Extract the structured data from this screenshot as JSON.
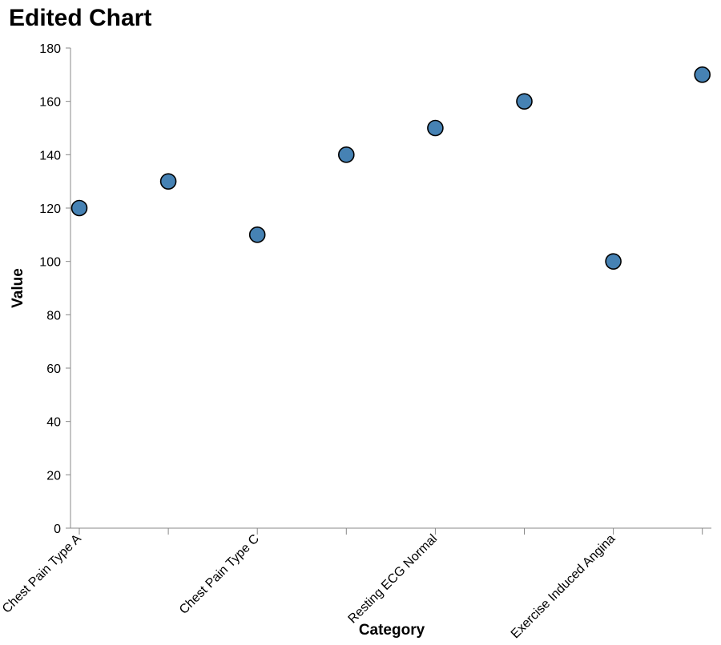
{
  "chart_data": {
    "type": "scatter",
    "title": "Edited Chart",
    "xlabel": "Category",
    "ylabel": "Value",
    "ylim": [
      0,
      180
    ],
    "y_ticks": [
      0,
      20,
      40,
      60,
      80,
      100,
      120,
      140,
      160,
      180
    ],
    "x_tick_labels": [
      "Chest Pain Type A",
      "Chest Pain Type C",
      "Resting ECG Normal",
      "Exercise Induced Angina"
    ],
    "categories": [
      "Chest Pain Type A",
      "",
      "Chest Pain Type C",
      "",
      "Resting ECG Normal",
      "",
      "Exercise Induced Angina",
      ""
    ],
    "values": [
      120,
      130,
      110,
      140,
      150,
      160,
      100,
      170
    ],
    "grid": false,
    "point_color": "#4682b4",
    "point_stroke": "#000000",
    "axis_color": "#888888"
  }
}
